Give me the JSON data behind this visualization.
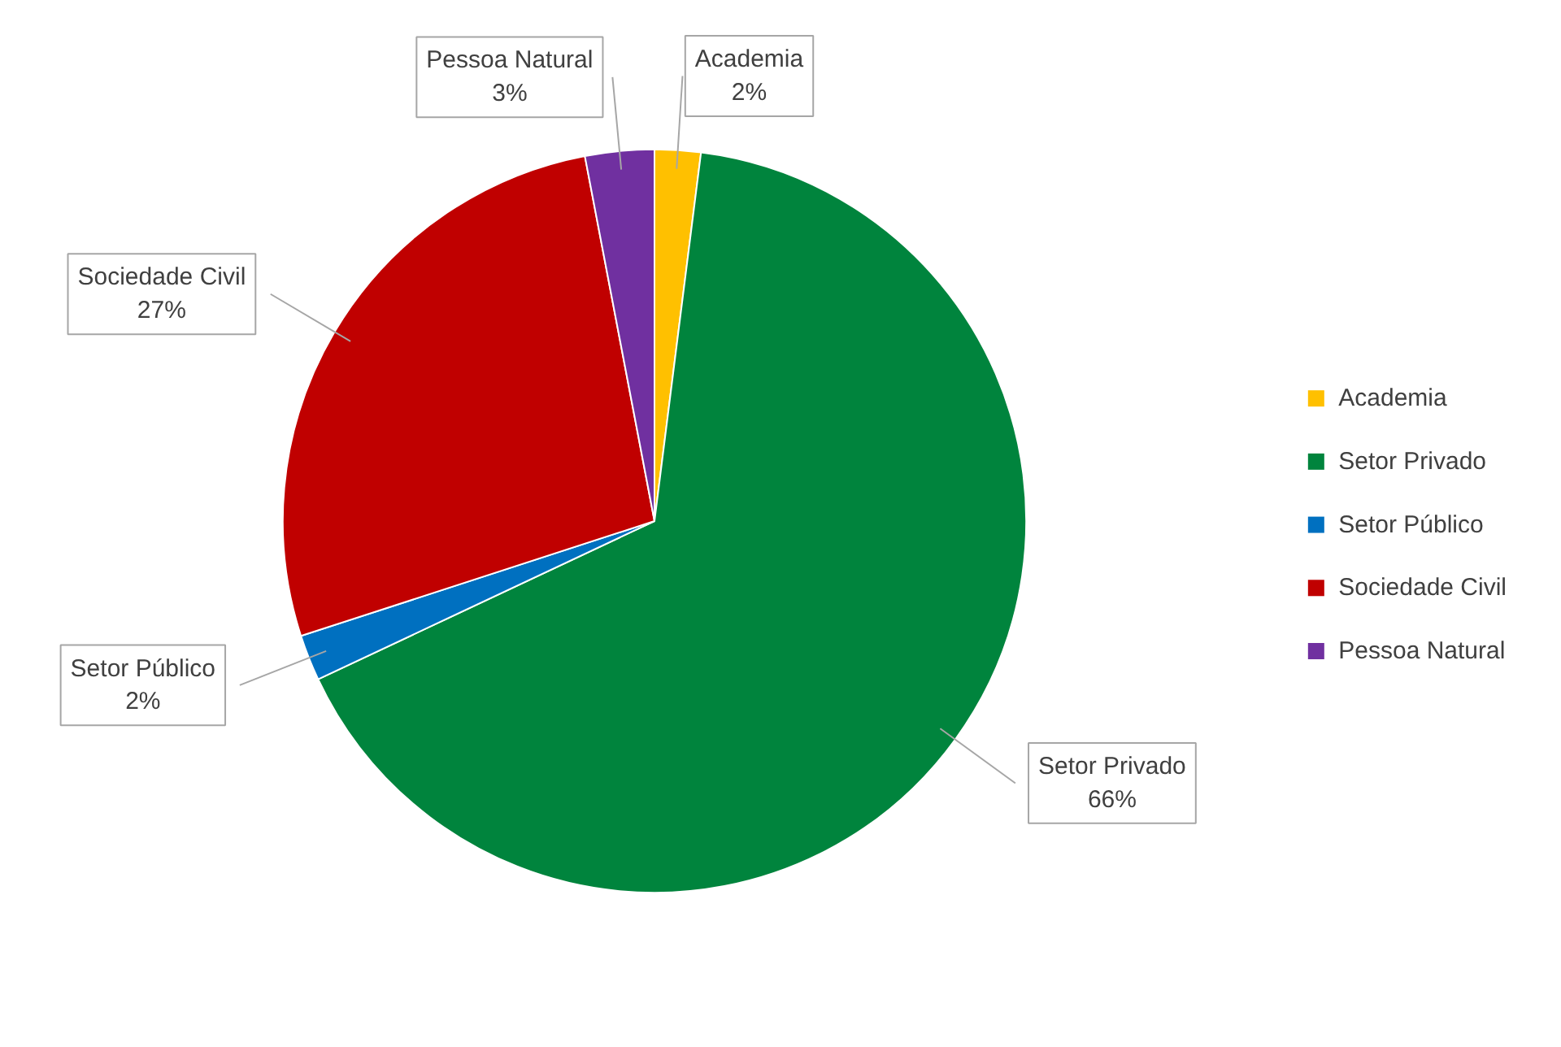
{
  "chart_data": {
    "type": "pie",
    "categories": [
      "Academia",
      "Setor Privado",
      "Setor Público",
      "Sociedade Civil",
      "Pessoa Natural"
    ],
    "values": [
      2,
      66,
      2,
      27,
      3
    ],
    "value_labels": [
      "2%",
      "66%",
      "2%",
      "27%",
      "3%"
    ],
    "colors": [
      "#ffc000",
      "#00843d",
      "#0070c0",
      "#c00000",
      "#7030a0"
    ],
    "legend": "right"
  }
}
